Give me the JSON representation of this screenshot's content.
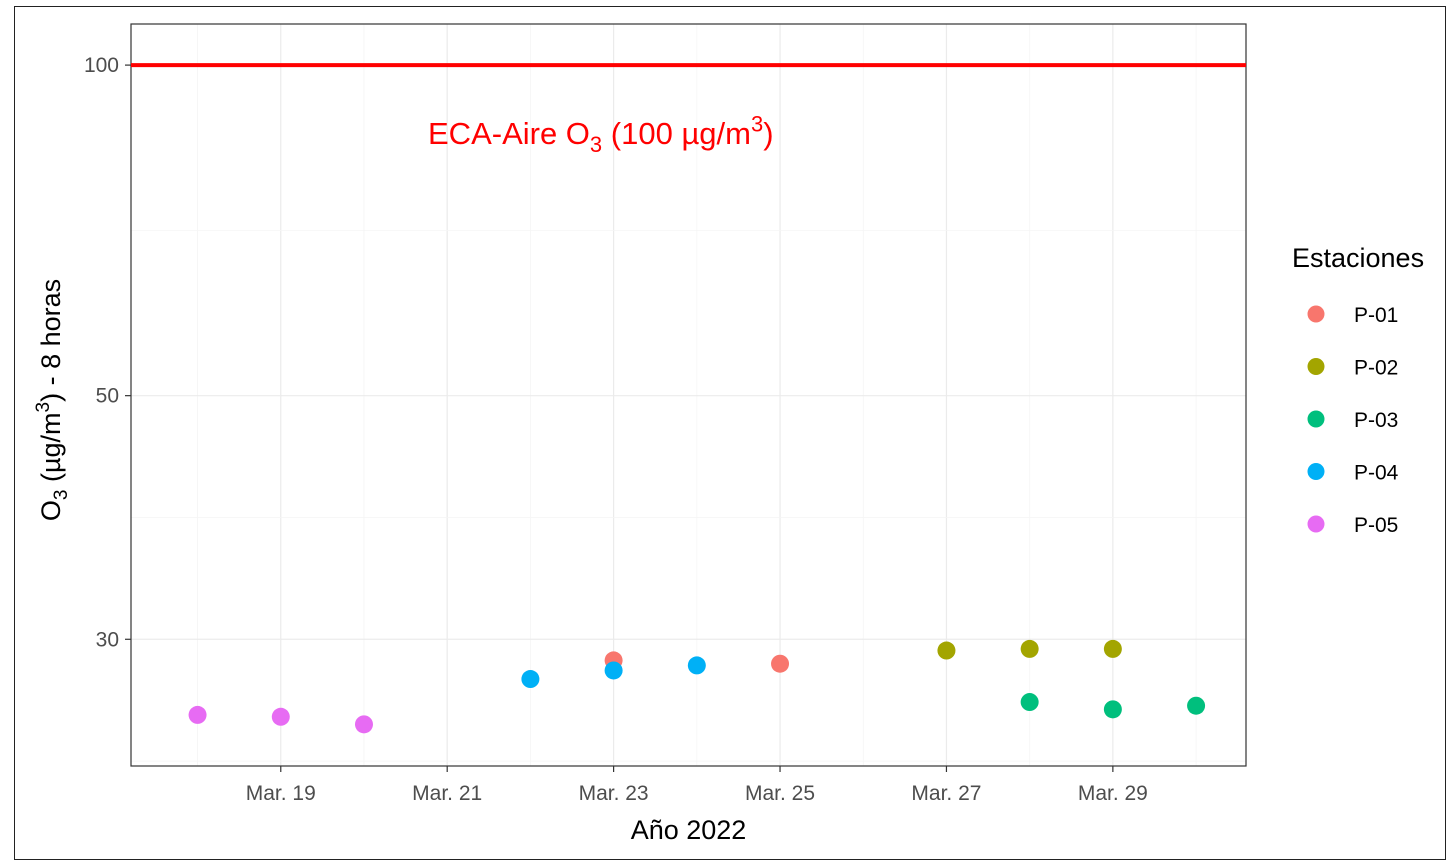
{
  "chart_data": {
    "type": "scatter",
    "xlabel": "Año 2022",
    "ylabel": {
      "base": "O",
      "sub": "3",
      "mid": " (µg/m",
      "sup": "3",
      "end": ") - 8 horas"
    },
    "x_range": [
      "2022-03-17.2",
      "2022-03-30.6"
    ],
    "y_scale": "log",
    "y_range": [
      23.0,
      109.0
    ],
    "y_ticks": [
      30,
      50,
      100
    ],
    "x_ticks": [
      {
        "date": "2022-03-19",
        "label": "Mar. 19"
      },
      {
        "date": "2022-03-21",
        "label": "Mar. 21"
      },
      {
        "date": "2022-03-23",
        "label": "Mar. 23"
      },
      {
        "date": "2022-03-25",
        "label": "Mar. 25"
      },
      {
        "date": "2022-03-27",
        "label": "Mar. 27"
      },
      {
        "date": "2022-03-29",
        "label": "Mar. 29"
      }
    ],
    "grid": true,
    "legend": {
      "title": "Estaciones",
      "placement": "right"
    },
    "reference_line": {
      "value": 100,
      "color": "#ff0000",
      "label": {
        "base": "ECA-Aire O",
        "sub": "3",
        "mid": " (100 µg/m",
        "sup": "3",
        "end": ")"
      }
    },
    "series": [
      {
        "name": "P-01",
        "color": "#f8766d",
        "points": [
          {
            "x": "2022-03-23",
            "y": 28.7
          },
          {
            "x": "2022-03-25",
            "y": 28.5
          }
        ]
      },
      {
        "name": "P-02",
        "color": "#a3a500",
        "points": [
          {
            "x": "2022-03-27",
            "y": 29.3
          },
          {
            "x": "2022-03-28",
            "y": 29.4
          },
          {
            "x": "2022-03-29",
            "y": 29.4
          }
        ]
      },
      {
        "name": "P-03",
        "color": "#00bf7d",
        "points": [
          {
            "x": "2022-03-28",
            "y": 26.3
          },
          {
            "x": "2022-03-29",
            "y": 25.9
          },
          {
            "x": "2022-03-30",
            "y": 26.1
          }
        ]
      },
      {
        "name": "P-04",
        "color": "#00b0f6",
        "points": [
          {
            "x": "2022-03-22",
            "y": 27.6
          },
          {
            "x": "2022-03-23",
            "y": 28.1
          },
          {
            "x": "2022-03-24",
            "y": 28.4
          }
        ]
      },
      {
        "name": "P-05",
        "color": "#e76bf3",
        "points": [
          {
            "x": "2022-03-18",
            "y": 25.6
          },
          {
            "x": "2022-03-19",
            "y": 25.5
          },
          {
            "x": "2022-03-20",
            "y": 25.1
          }
        ]
      }
    ]
  }
}
